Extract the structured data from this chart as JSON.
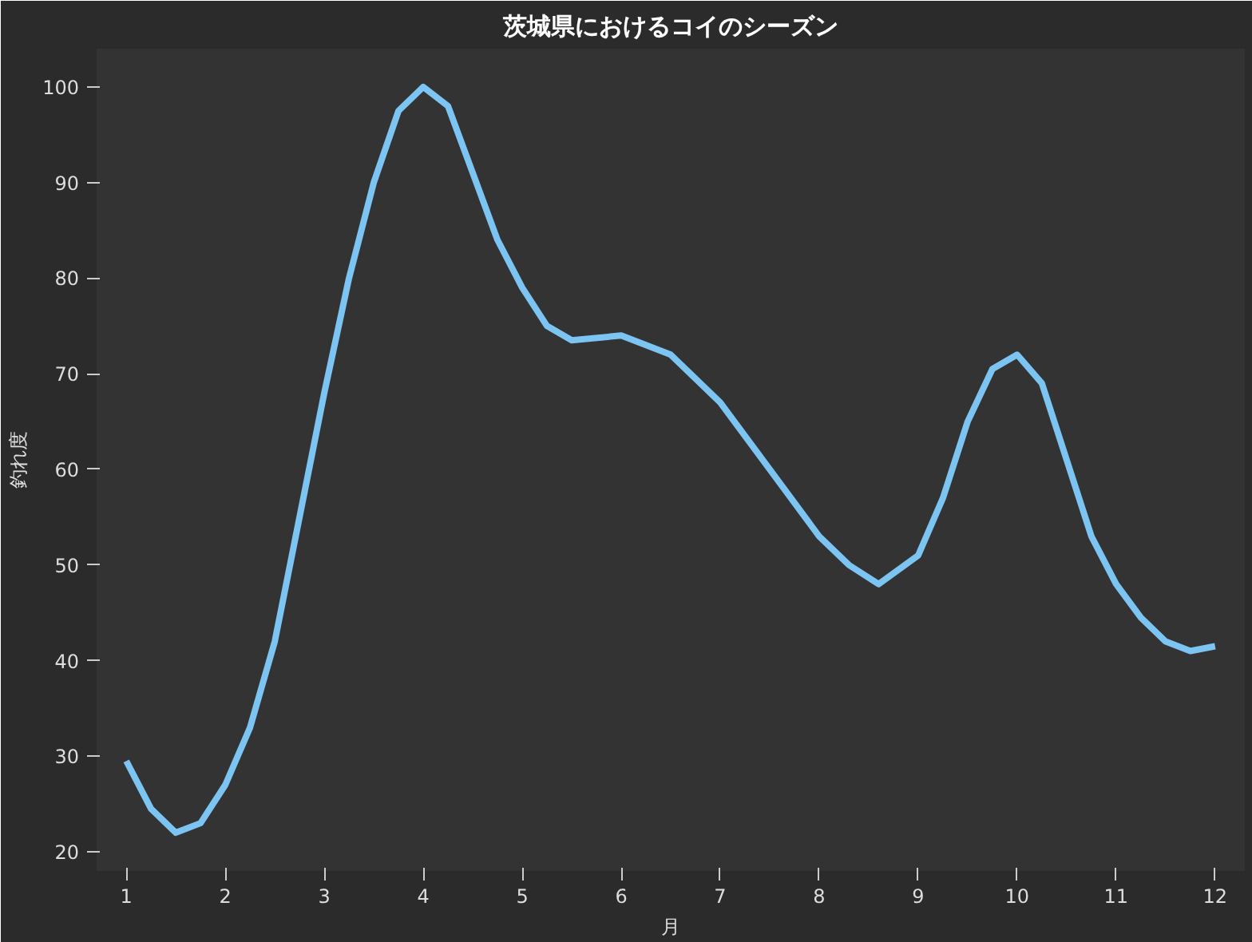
{
  "chart_data": {
    "type": "line",
    "title": "茨城県におけるコイのシーズン",
    "xlabel": "月",
    "ylabel": "釣れ度",
    "x": [
      1,
      1.25,
      1.5,
      1.75,
      2,
      2.25,
      2.5,
      2.75,
      3,
      3.25,
      3.5,
      3.75,
      4,
      4.25,
      4.5,
      4.75,
      5,
      5.25,
      5.5,
      6,
      6.5,
      7,
      7.5,
      8,
      8.3,
      8.6,
      9,
      9.25,
      9.5,
      9.75,
      10,
      10.25,
      10.5,
      10.75,
      11,
      11.25,
      11.5,
      11.75,
      12
    ],
    "series": [
      {
        "color": "#7cc4f2",
        "values": [
          29.5,
          24.5,
          22,
          23,
          27,
          33,
          42,
          55,
          68,
          80,
          90,
          97.5,
          100,
          98,
          91,
          84,
          79,
          75,
          73.5,
          74,
          72,
          67,
          60,
          53,
          50,
          48,
          51,
          57,
          65,
          70.5,
          72,
          69,
          61,
          53,
          48,
          44.5,
          42,
          41,
          41.5
        ]
      }
    ],
    "xlim": [
      0.7,
      12.3
    ],
    "ylim": [
      18,
      104
    ],
    "xticks": [
      1,
      2,
      3,
      4,
      5,
      6,
      7,
      8,
      9,
      10,
      11,
      12
    ],
    "yticks": [
      20,
      30,
      40,
      50,
      60,
      70,
      80,
      90,
      100
    ],
    "grid": false,
    "marker": "none",
    "line_style": "solid"
  }
}
